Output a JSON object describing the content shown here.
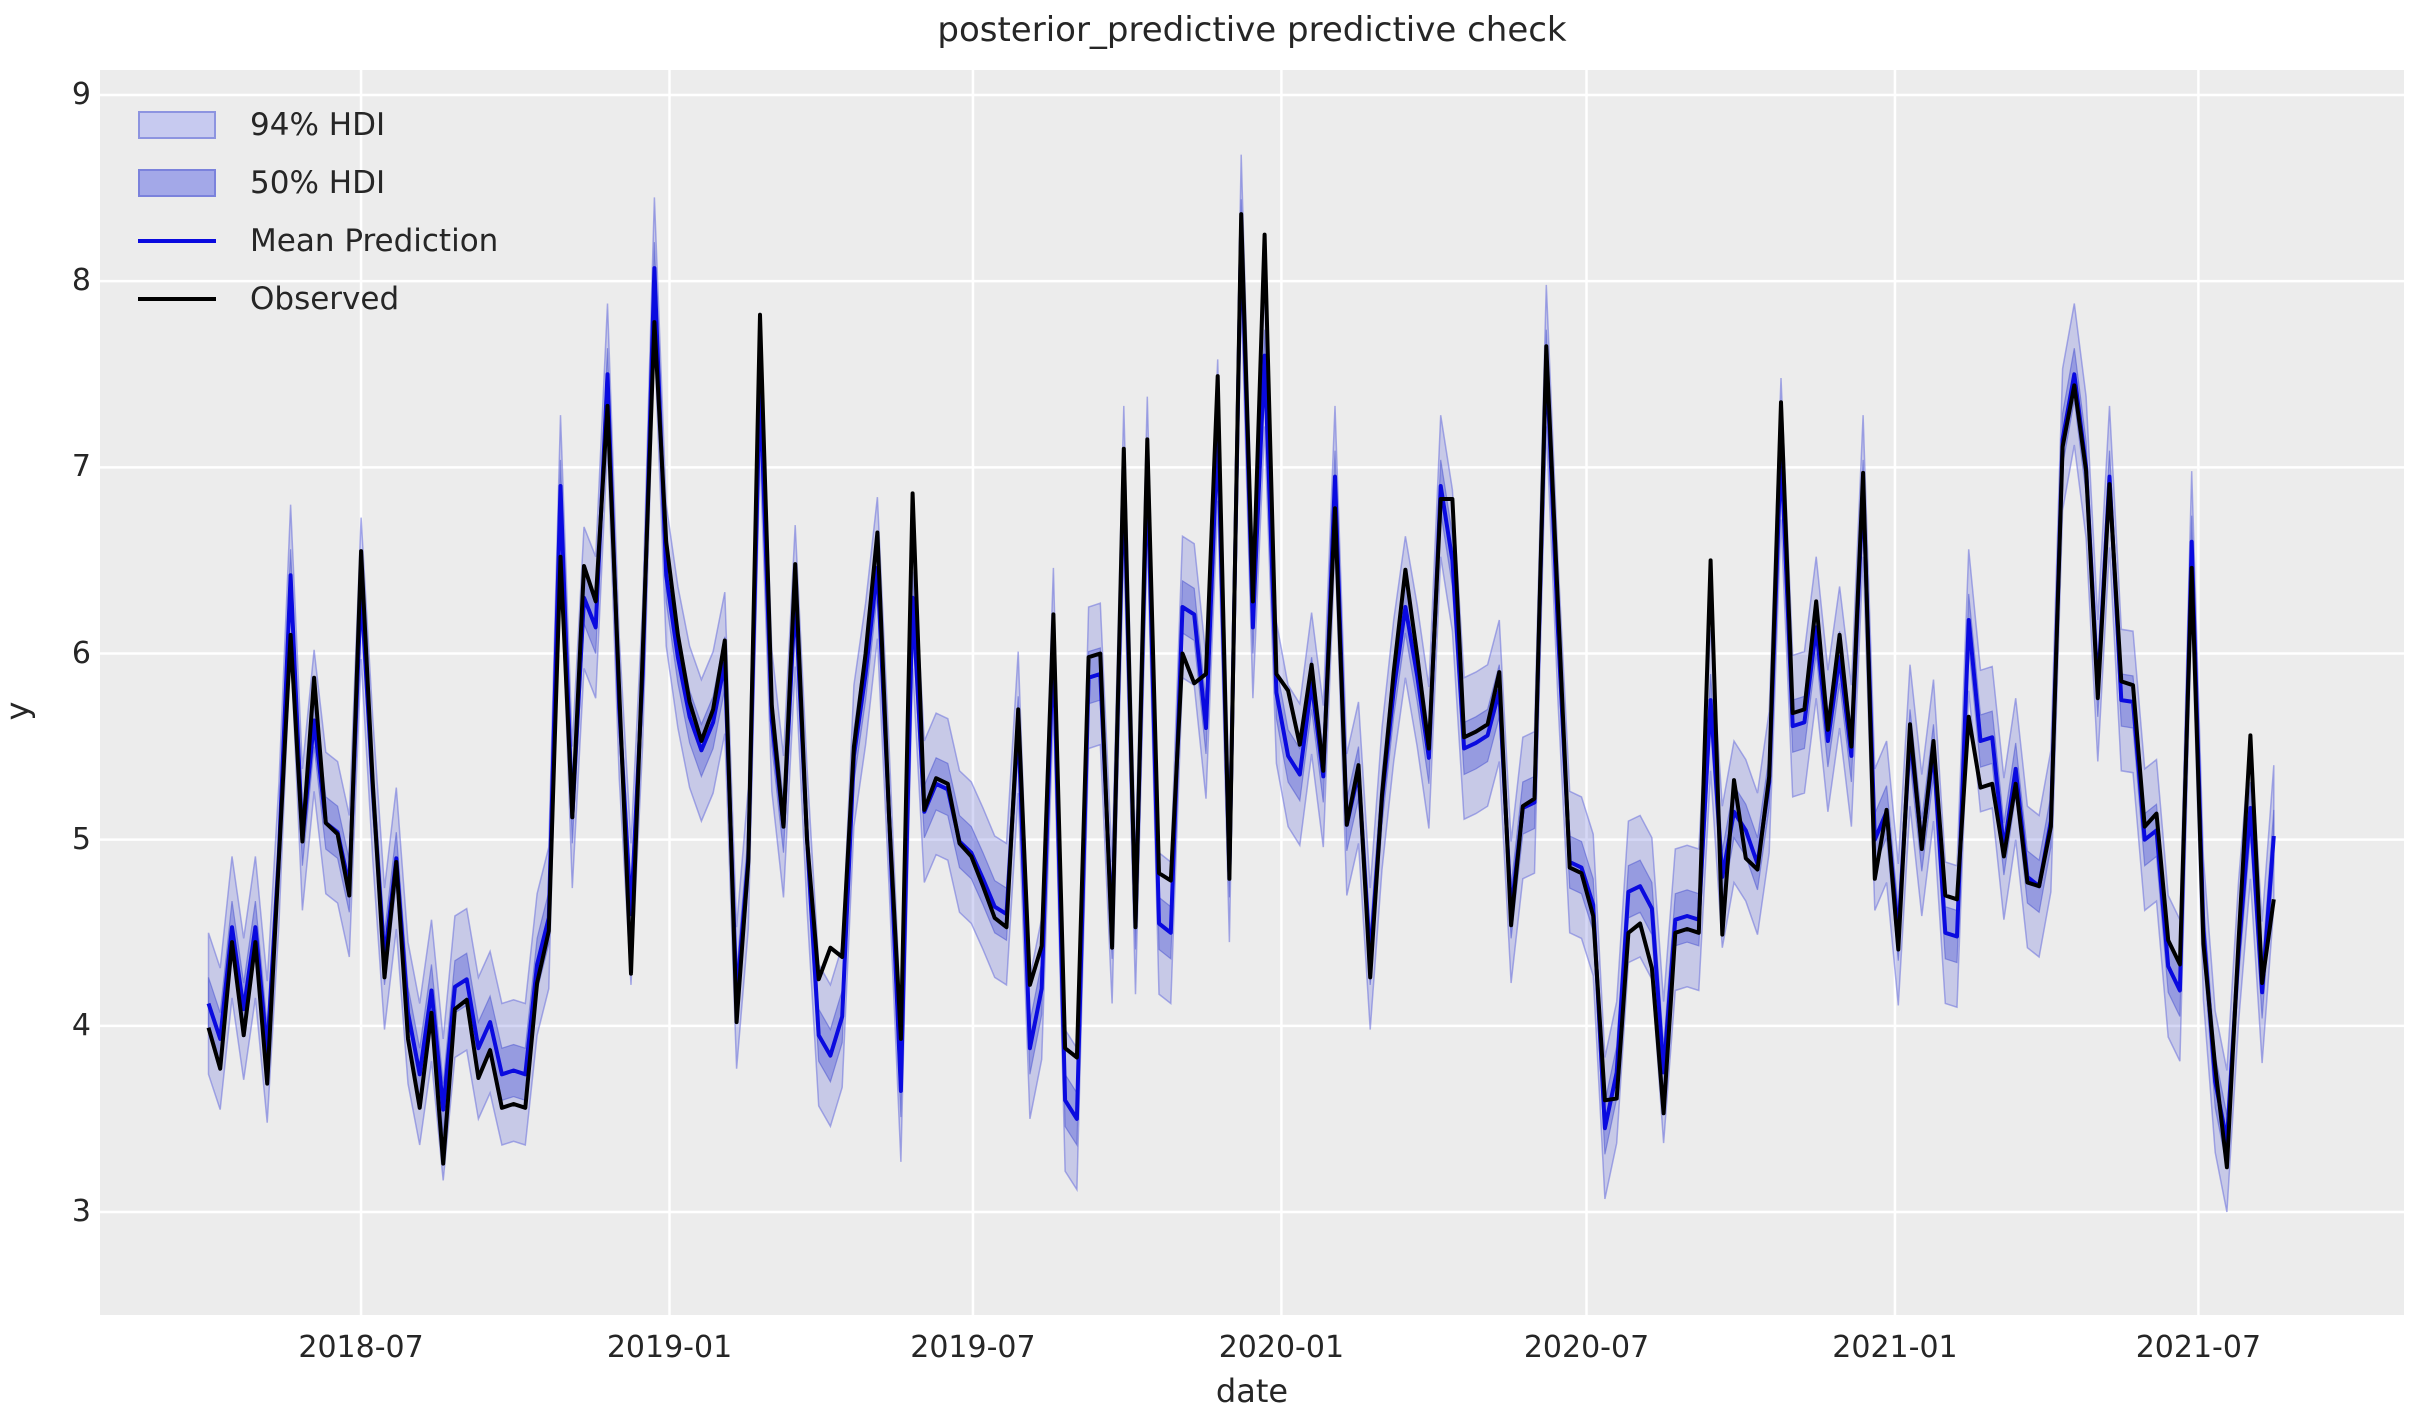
{
  "title": "posterior_predictive predictive check",
  "axes": {
    "x_label": "date",
    "y_label": "y",
    "y_ticks": [
      3,
      4,
      5,
      6,
      7,
      8,
      9
    ],
    "x_ticks": [
      {
        "label": "2018-07",
        "day": 91
      },
      {
        "label": "2019-01",
        "day": 275
      },
      {
        "label": "2019-07",
        "day": 456
      },
      {
        "label": "2020-01",
        "day": 640
      },
      {
        "label": "2020-07",
        "day": 822
      },
      {
        "label": "2021-01",
        "day": 1006
      },
      {
        "label": "2021-07",
        "day": 1187
      }
    ]
  },
  "legend": {
    "items": [
      {
        "label": "94% HDI",
        "type": "patch",
        "fill": "#c7caf0",
        "edge": "#8d94e0"
      },
      {
        "label": "50% HDI",
        "type": "patch",
        "fill": "#a3a8e8",
        "edge": "#7b82dc"
      },
      {
        "label": "Mean Prediction",
        "type": "line",
        "color": "#0a0adf"
      },
      {
        "label": "Observed",
        "type": "line",
        "color": "#000000"
      }
    ]
  },
  "colors": {
    "figure_background": "#ffffff",
    "axes_background": "#ececec",
    "gridline": "#ffffff",
    "observed_line": "#000000",
    "mean_line": "#0a0adf",
    "hdi94_fill": "rgba(105,112,220,0.28)",
    "hdi94_edge": "rgba(105,112,220,0.55)",
    "hdi50_fill": "rgba(92,100,215,0.45)",
    "hdi50_edge": "rgba(80,90,210,0.55)",
    "text": "#262626"
  },
  "chart_data": {
    "type": "line",
    "title": "posterior_predictive predictive check",
    "xlabel": "date",
    "ylabel": "y",
    "grid": true,
    "legend_position": "upper left",
    "x_start_date": "2018-04-01",
    "x_interval_days": 7,
    "n_points": 177,
    "x_end_date": "2021-08-15",
    "ylim": [
      2.45,
      9.13
    ],
    "x_tick_labels": [
      "2018-07",
      "2019-01",
      "2019-07",
      "2020-01",
      "2020-07",
      "2021-01",
      "2021-07"
    ],
    "y_tick_labels": [
      3,
      4,
      5,
      6,
      7,
      8,
      9
    ],
    "series": [
      {
        "name": "Observed",
        "color": "#000000",
        "values": [
          3.99,
          3.77,
          4.45,
          3.95,
          4.45,
          3.69,
          4.9,
          6.1,
          4.99,
          5.87,
          5.09,
          5.03,
          4.7,
          6.55,
          5.3,
          4.26,
          4.88,
          3.93,
          3.56,
          4.07,
          3.26,
          4.09,
          4.14,
          3.72,
          3.87,
          3.56,
          3.58,
          3.56,
          4.23,
          4.51,
          6.52,
          5.12,
          6.47,
          6.28,
          7.33,
          5.8,
          4.28,
          6.0,
          7.78,
          6.6,
          6.1,
          5.74,
          5.53,
          5.7,
          6.07,
          4.02,
          4.88,
          7.82,
          5.72,
          5.07,
          6.48,
          5.0,
          4.25,
          4.42,
          4.37,
          5.5,
          6.0,
          6.65,
          5.12,
          3.93,
          6.86,
          5.16,
          5.33,
          5.3,
          4.98,
          4.91,
          4.75,
          4.58,
          4.53,
          5.7,
          4.22,
          4.43,
          6.21,
          3.88,
          3.83,
          5.98,
          6.0,
          4.42,
          7.1,
          4.53,
          7.15,
          4.82,
          4.78,
          6.0,
          5.84,
          5.89,
          7.49,
          4.79,
          8.36,
          6.28,
          8.25,
          5.89,
          5.8,
          5.51,
          5.94,
          5.37,
          6.78,
          5.08,
          5.4,
          4.26,
          5.24,
          5.9,
          6.45,
          5.99,
          5.49,
          6.83,
          6.83,
          5.55,
          5.58,
          5.62,
          5.9,
          4.54,
          5.18,
          5.22,
          7.65,
          6.26,
          4.85,
          4.82,
          4.59,
          3.6,
          3.61,
          4.5,
          4.55,
          4.31,
          3.53,
          4.5,
          4.52,
          4.5,
          6.5,
          4.49,
          5.32,
          4.9,
          4.84,
          5.34,
          7.35,
          5.68,
          5.7,
          6.28,
          5.59,
          6.1,
          5.5,
          6.97,
          4.79,
          5.16,
          4.41,
          5.62,
          4.95,
          5.53,
          4.7,
          4.68,
          5.66,
          5.28,
          5.3,
          4.91,
          5.3,
          4.77,
          4.75,
          5.07,
          7.11,
          7.44,
          6.98,
          5.76,
          6.91,
          5.85,
          5.83,
          5.07,
          5.14,
          4.46,
          4.33,
          6.46,
          4.44,
          3.78,
          3.24,
          4.46,
          5.56,
          4.23,
          4.68
        ]
      },
      {
        "name": "Mean Prediction",
        "color": "#0a0adf",
        "values": [
          4.12,
          3.93,
          4.53,
          4.09,
          4.53,
          3.86,
          4.92,
          6.42,
          5.0,
          5.64,
          5.09,
          5.04,
          4.75,
          6.35,
          5.27,
          4.36,
          4.9,
          4.07,
          3.74,
          4.19,
          3.55,
          4.21,
          4.25,
          3.88,
          4.02,
          3.74,
          3.76,
          3.74,
          4.33,
          4.58,
          6.9,
          5.12,
          6.3,
          6.14,
          7.5,
          5.71,
          4.6,
          5.89,
          8.07,
          6.42,
          5.98,
          5.66,
          5.48,
          5.63,
          5.95,
          4.15,
          4.9,
          7.45,
          5.64,
          5.07,
          6.31,
          5.01,
          3.95,
          3.84,
          4.05,
          5.45,
          5.89,
          6.46,
          5.12,
          3.65,
          6.3,
          5.15,
          5.3,
          5.27,
          4.99,
          4.93,
          4.79,
          4.64,
          4.6,
          5.63,
          3.88,
          4.2,
          6.08,
          3.6,
          3.5,
          5.87,
          5.89,
          4.5,
          6.95,
          4.55,
          7.0,
          4.55,
          4.5,
          6.25,
          6.21,
          5.6,
          7.2,
          4.83,
          8.3,
          6.14,
          7.6,
          5.79,
          5.45,
          5.35,
          5.84,
          5.34,
          6.95,
          5.08,
          5.36,
          4.36,
          5.22,
          5.8,
          6.25,
          5.88,
          5.44,
          6.9,
          6.5,
          5.49,
          5.52,
          5.56,
          5.8,
          4.61,
          5.17,
          5.2,
          7.6,
          6.12,
          4.88,
          4.85,
          4.65,
          3.45,
          3.75,
          4.72,
          4.75,
          4.63,
          3.75,
          4.57,
          4.59,
          4.57,
          5.75,
          4.8,
          5.15,
          5.05,
          4.87,
          5.31,
          7.1,
          5.61,
          5.63,
          6.14,
          5.53,
          5.98,
          5.45,
          6.9,
          5.0,
          5.15,
          4.49,
          5.56,
          4.97,
          5.48,
          4.5,
          4.48,
          6.18,
          5.53,
          5.55,
          4.95,
          5.38,
          4.8,
          4.75,
          5.1,
          7.15,
          7.5,
          7.0,
          5.8,
          6.95,
          5.75,
          5.74,
          5.0,
          5.05,
          4.32,
          4.19,
          6.6,
          4.52,
          3.7,
          3.38,
          4.4,
          5.17,
          4.18,
          5.02
        ]
      }
    ],
    "bands": [
      {
        "name": "94% HDI",
        "around": "Mean Prediction",
        "approx_halfwidth": 0.38
      },
      {
        "name": "50% HDI",
        "around": "Mean Prediction",
        "approx_halfwidth": 0.14
      }
    ]
  }
}
